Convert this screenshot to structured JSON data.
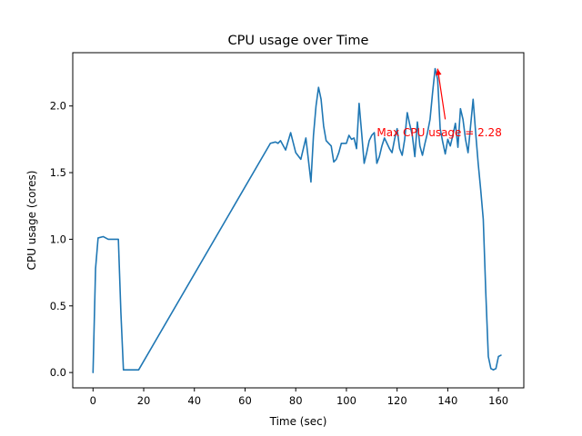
{
  "chart_data": {
    "type": "line",
    "title": "CPU usage over Time",
    "xlabel": "Time (sec)",
    "ylabel": "CPU usage (cores)",
    "xlim": [
      -8,
      170
    ],
    "ylim": [
      -0.115,
      2.4
    ],
    "xticks": [
      0,
      20,
      40,
      60,
      80,
      100,
      120,
      140,
      160
    ],
    "yticks": [
      0.0,
      0.5,
      1.0,
      1.5,
      2.0
    ],
    "ytick_labels": [
      "0.0",
      "0.5",
      "1.0",
      "1.5",
      "2.0"
    ],
    "grid": false,
    "line_color": "#1f77b4",
    "series": [
      {
        "x": [
          0,
          1,
          2,
          4,
          6,
          8,
          10,
          11,
          12,
          14,
          16,
          18,
          70,
          72,
          73,
          74,
          76,
          78,
          80,
          82,
          84,
          86,
          87,
          88,
          89,
          90,
          91,
          92,
          93,
          94,
          95,
          96,
          97,
          98,
          99,
          100,
          101,
          102,
          103,
          104,
          105,
          106,
          107,
          108,
          109,
          110,
          111,
          112,
          113,
          114,
          115,
          116,
          117,
          118,
          119,
          120,
          121,
          122,
          123,
          124,
          125,
          126,
          127,
          128,
          129,
          130,
          131,
          132,
          133,
          134,
          135,
          136,
          137,
          138,
          139,
          140,
          141,
          142,
          143,
          144,
          145,
          146,
          147,
          148,
          149,
          150,
          151,
          152,
          153,
          154,
          155,
          156,
          157,
          158,
          159,
          160,
          161
        ],
        "y": [
          0.0,
          0.78,
          1.01,
          1.02,
          1.0,
          1.0,
          1.0,
          0.45,
          0.02,
          0.02,
          0.02,
          0.02,
          1.72,
          1.73,
          1.72,
          1.74,
          1.67,
          1.8,
          1.65,
          1.6,
          1.76,
          1.43,
          1.78,
          2.0,
          2.14,
          2.05,
          1.85,
          1.74,
          1.72,
          1.7,
          1.58,
          1.6,
          1.65,
          1.72,
          1.72,
          1.72,
          1.78,
          1.75,
          1.76,
          1.68,
          2.02,
          1.8,
          1.57,
          1.65,
          1.74,
          1.78,
          1.8,
          1.57,
          1.62,
          1.7,
          1.76,
          1.72,
          1.68,
          1.65,
          1.75,
          1.83,
          1.68,
          1.63,
          1.75,
          1.95,
          1.86,
          1.78,
          1.62,
          1.88,
          1.7,
          1.63,
          1.72,
          1.8,
          1.9,
          2.1,
          2.28,
          2.2,
          1.83,
          1.73,
          1.64,
          1.75,
          1.7,
          1.78,
          1.87,
          1.69,
          1.98,
          1.9,
          1.75,
          1.65,
          1.85,
          2.05,
          1.8,
          1.57,
          1.37,
          1.15,
          0.6,
          0.12,
          0.03,
          0.02,
          0.03,
          0.12,
          0.13
        ]
      }
    ],
    "annotation": {
      "text": "Max CPU usage = 2.28",
      "color": "#ff0000",
      "point": [
        136,
        2.28
      ],
      "text_anchor_point": [
        112,
        1.8
      ],
      "arrow_tail": [
        139,
        1.9
      ]
    }
  }
}
